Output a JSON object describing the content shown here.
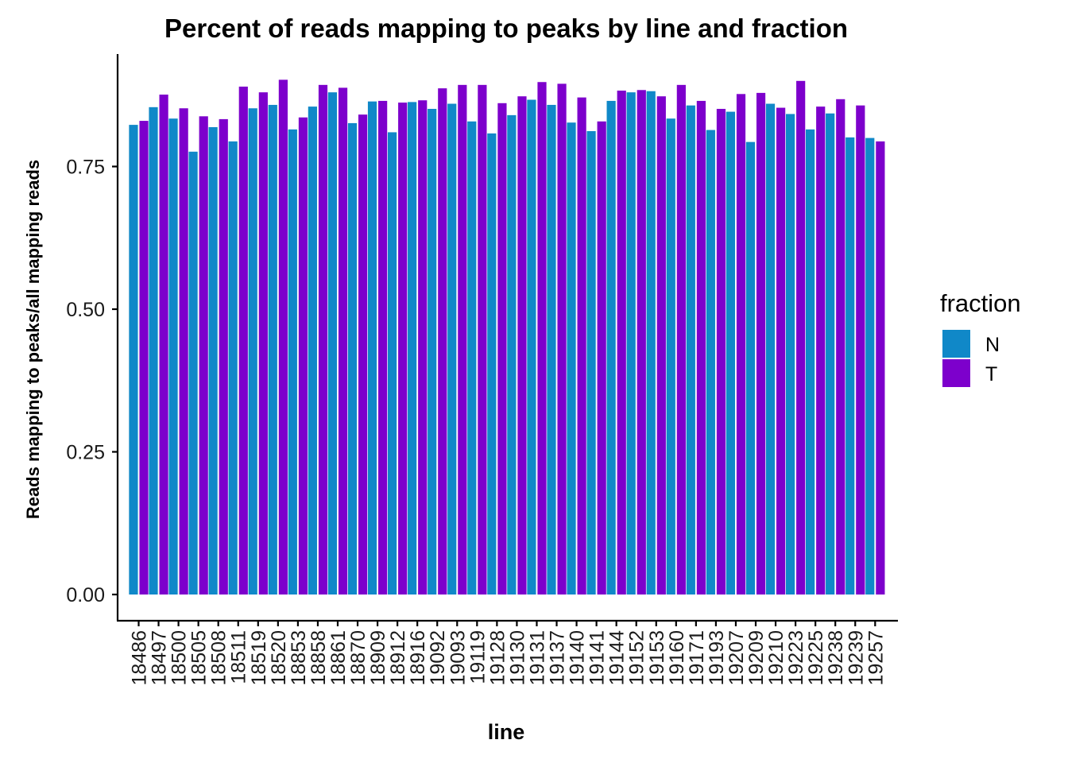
{
  "chart_data": {
    "type": "bar",
    "title": "Percent of reads mapping to peaks by line and fraction",
    "xlabel": "line",
    "ylabel": "Reads mapping to peaks/all mapping reads",
    "ylim": [
      0,
      0.93
    ],
    "yticks": [
      0,
      0.25,
      0.5,
      0.75
    ],
    "ytick_labels": [
      "0.00",
      "0.25",
      "0.50",
      "0.75"
    ],
    "grid": false,
    "legend_position": "right",
    "legend_title": "fraction",
    "categories": [
      "18486",
      "18497",
      "18500",
      "18505",
      "18508",
      "18511",
      "18519",
      "18520",
      "18853",
      "18858",
      "18861",
      "18870",
      "18909",
      "18912",
      "18916",
      "19092",
      "19093",
      "19119",
      "19128",
      "19130",
      "19131",
      "19137",
      "19140",
      "19141",
      "19144",
      "19152",
      "19153",
      "19160",
      "19171",
      "19193",
      "19207",
      "19209",
      "19210",
      "19223",
      "19225",
      "19238",
      "19239",
      "19257"
    ],
    "series": [
      {
        "name": "N",
        "color": "#1088c8",
        "values": [
          0.823,
          0.854,
          0.834,
          0.776,
          0.819,
          0.794,
          0.852,
          0.858,
          0.815,
          0.855,
          0.88,
          0.826,
          0.864,
          0.81,
          0.863,
          0.851,
          0.86,
          0.829,
          0.808,
          0.84,
          0.867,
          0.858,
          0.827,
          0.812,
          0.865,
          0.88,
          0.882,
          0.834,
          0.857,
          0.814,
          0.846,
          0.793,
          0.86,
          0.842,
          0.815,
          0.843,
          0.801,
          0.8
        ]
      },
      {
        "name": "T",
        "color": "#7d00cc",
        "values": [
          0.83,
          0.876,
          0.852,
          0.838,
          0.833,
          0.89,
          0.88,
          0.902,
          0.836,
          0.893,
          0.888,
          0.841,
          0.865,
          0.862,
          0.866,
          0.887,
          0.893,
          0.893,
          0.861,
          0.873,
          0.898,
          0.895,
          0.871,
          0.829,
          0.883,
          0.884,
          0.873,
          0.893,
          0.865,
          0.851,
          0.877,
          0.879,
          0.853,
          0.9,
          0.855,
          0.868,
          0.857,
          0.794
        ]
      }
    ]
  }
}
